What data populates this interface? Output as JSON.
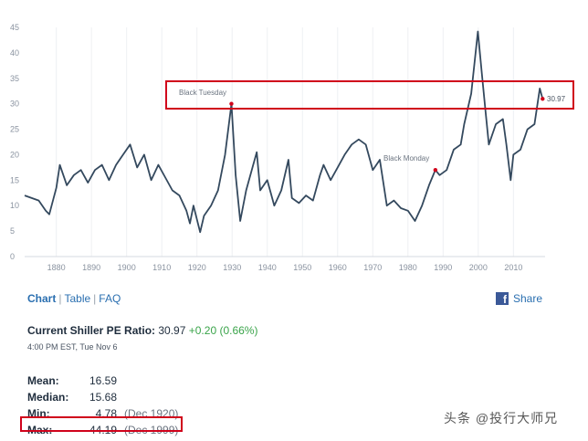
{
  "chart_data": {
    "type": "line",
    "title": "",
    "xlabel": "",
    "ylabel": "",
    "xlim": [
      1871,
      2019
    ],
    "ylim": [
      0,
      45
    ],
    "x_ticks": [
      "1880",
      "1890",
      "1900",
      "1910",
      "1920",
      "1930",
      "1940",
      "1950",
      "1960",
      "1970",
      "1980",
      "1990",
      "2000",
      "2010"
    ],
    "y_ticks": [
      "0",
      "5",
      "10",
      "15",
      "20",
      "25",
      "30",
      "35",
      "40",
      "45"
    ],
    "grid": "vertical",
    "series": [
      {
        "x": [
          1871,
          1873,
          1875,
          1877,
          1878,
          1880,
          1881,
          1883,
          1885,
          1887,
          1889,
          1891,
          1893,
          1895,
          1897,
          1899,
          1901,
          1903,
          1905,
          1907,
          1909,
          1911,
          1913,
          1915,
          1917,
          1918,
          1919,
          1920.9,
          1922,
          1924,
          1926,
          1928,
          1929.8,
          1931,
          1932.3,
          1934,
          1936,
          1937,
          1938,
          1940,
          1942,
          1944,
          1946,
          1947,
          1949,
          1951,
          1953,
          1955,
          1956,
          1958,
          1960,
          1962,
          1964,
          1966,
          1968,
          1970,
          1972,
          1974,
          1976,
          1978,
          1980,
          1982,
          1984,
          1986,
          1987.8,
          1989,
          1991,
          1993,
          1995,
          1996,
          1998,
          1999.9,
          2001,
          2002,
          2003,
          2005,
          2007,
          2008,
          2009.2,
          2010,
          2012,
          2014,
          2016,
          2017.5,
          2018.3
        ],
        "values": [
          12.0,
          11.5,
          11.0,
          9.0,
          8.3,
          13.5,
          18.0,
          14.0,
          16.0,
          17.0,
          14.5,
          17.0,
          18.0,
          15.0,
          18.0,
          20.0,
          22.0,
          17.5,
          20.0,
          15.0,
          18.0,
          15.5,
          13.0,
          12.0,
          9.0,
          6.5,
          10.0,
          4.78,
          8.0,
          10.0,
          13.0,
          20.0,
          30.0,
          16.0,
          7.0,
          13.0,
          18.0,
          20.5,
          13.0,
          15.0,
          10.0,
          13.0,
          19.0,
          11.5,
          10.5,
          12.0,
          11.0,
          16.0,
          18.0,
          15.0,
          17.5,
          20.0,
          22.0,
          23.0,
          22.0,
          17.0,
          19.0,
          10.0,
          11.0,
          9.5,
          9.0,
          7.0,
          10.0,
          14.0,
          17.0,
          16.0,
          17.0,
          21.0,
          22.0,
          26.0,
          32.0,
          44.19,
          36.0,
          29.0,
          22.0,
          26.0,
          27.0,
          22.0,
          15.0,
          20.0,
          21.0,
          25.0,
          26.0,
          33.0,
          30.97
        ]
      }
    ],
    "annotations": [
      "Black Tuesday",
      "Black Monday"
    ],
    "end_label": "30.97",
    "highlight_colors": {
      "line": "#34495e",
      "marker": "#d0021b",
      "box": "#d0021b"
    }
  },
  "tabs": {
    "chart": "Chart",
    "table": "Table",
    "faq": "FAQ",
    "separator": "|"
  },
  "share": {
    "label": "Share",
    "icon": "facebook-icon"
  },
  "current": {
    "title": "Current Shiller PE Ratio:",
    "value": "30.97",
    "change": "+0.20 (0.66%)"
  },
  "timestamp": "4:00 PM EST, Tue Nov 6",
  "stats": [
    {
      "label": "Mean:",
      "value": "16.59",
      "date": ""
    },
    {
      "label": "Median:",
      "value": "15.68",
      "date": ""
    },
    {
      "label": "Min:",
      "value": "4.78",
      "date": "(Dec 1920)"
    },
    {
      "label": "Max:",
      "value": "44.19",
      "date": "(Dec 1999)"
    }
  ],
  "watermark": "头条 @投行大师兄"
}
